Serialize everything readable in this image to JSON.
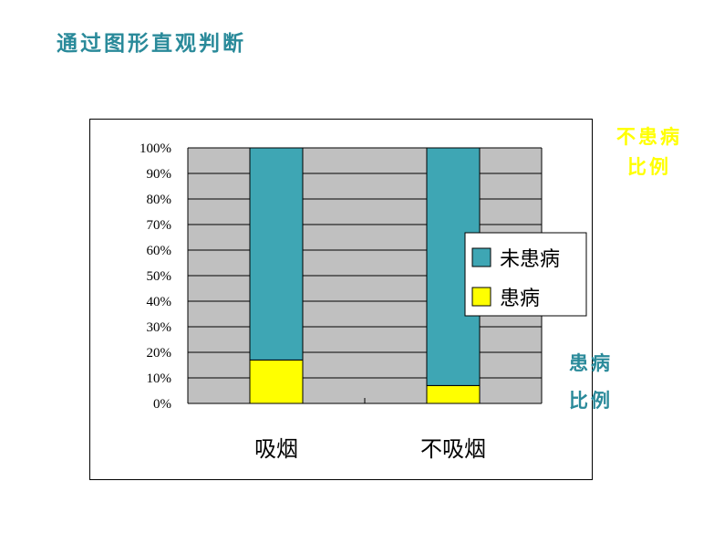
{
  "title": "通过图形直观判断",
  "side_notes": {
    "top": [
      "不患病",
      "比例"
    ],
    "bottom": [
      "患病",
      "比例"
    ]
  },
  "colors": {
    "healthy": "#3ea6b4",
    "sick": "#ffff00",
    "plot_bg": "#c0c0c0",
    "grid": "#000000",
    "accent_text": "#2a8a9a"
  },
  "chart_data": {
    "type": "bar",
    "stacked": true,
    "categories": [
      "吸烟",
      "不吸烟"
    ],
    "series": [
      {
        "name": "患病",
        "values": [
          17,
          7
        ],
        "color": "#ffff00"
      },
      {
        "name": "未患病",
        "values": [
          83,
          93
        ],
        "color": "#3ea6b4"
      }
    ],
    "ylim": [
      0,
      100
    ],
    "y_ticks": [
      "0%",
      "10%",
      "20%",
      "30%",
      "40%",
      "50%",
      "60%",
      "70%",
      "80%",
      "90%",
      "100%"
    ],
    "grid": true,
    "legend": {
      "position": "right",
      "entries": [
        "未患病",
        "患病"
      ]
    }
  }
}
